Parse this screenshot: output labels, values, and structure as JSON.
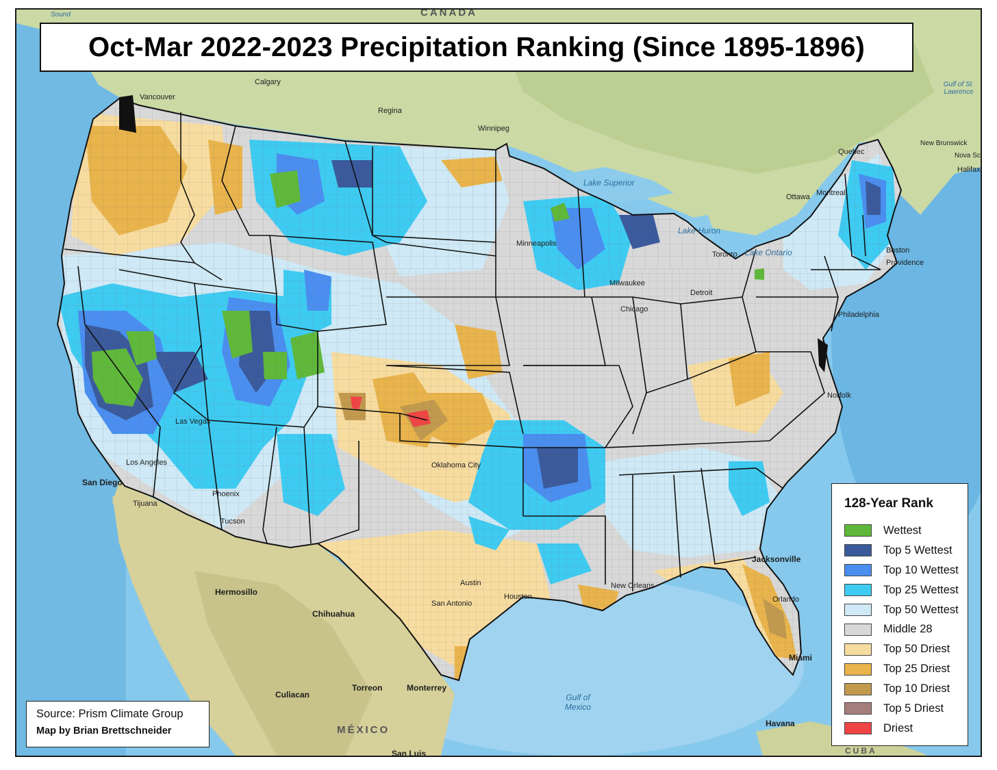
{
  "map": {
    "title": "Oct-Mar 2022-2023 Precipitation Ranking (Since 1895-1896)",
    "source": "Source: Prism Climate Group",
    "credit": "Map by Brian Brettschneider"
  },
  "legend": {
    "title": "128-Year Rank",
    "items": [
      {
        "label": "Wettest",
        "color": "#5fb83a"
      },
      {
        "label": "Top 5 Wettest",
        "color": "#3a5a9c"
      },
      {
        "label": "Top 10 Wettest",
        "color": "#4a8ef0"
      },
      {
        "label": "Top 25 Wettest",
        "color": "#3ecbf2"
      },
      {
        "label": "Top 50 Wettest",
        "color": "#cfe9f6"
      },
      {
        "label": "Middle 28",
        "color": "#d8d8d8"
      },
      {
        "label": "Top 50 Driest",
        "color": "#f7dca0"
      },
      {
        "label": "Top 25 Driest",
        "color": "#e9b44c"
      },
      {
        "label": "Top 10 Driest",
        "color": "#c29a4e"
      },
      {
        "label": "Top 5 Driest",
        "color": "#a67d7d"
      },
      {
        "label": "Driest",
        "color": "#f04545"
      }
    ]
  },
  "basemap_labels": {
    "canada": "CANADA",
    "mexico": "MÉXICO",
    "gulf_of_mexico": "Gulf of Mexico",
    "lake_superior": "Lake Superior",
    "lake_huron": "Lake Huron",
    "lake_ontario": "Lake Ontario",
    "gulf_st_lawrence": "Gulf of St. Lawrence",
    "sound": "Sound",
    "vancouver": "Vancouver",
    "calgary": "Calgary",
    "regina": "Regina",
    "winnipeg": "Winnipeg",
    "quebec": "Quebec",
    "ottawa": "Ottawa",
    "montreal": "Montreal",
    "new_brunswick": "New Brunswick",
    "nova_scotia": "Nova Scotia",
    "halifax": "Halifax",
    "toronto": "Toronto",
    "boston": "Boston",
    "providence": "Providence",
    "philadelphia": "Philadelphia",
    "norfolk": "Norfolk",
    "detroit": "Detroit",
    "chicago": "Chicago",
    "milwaukee": "Milwaukee",
    "minneapolis": "Minneapolis",
    "jacksonville": "Jacksonville",
    "orlando": "Orlando",
    "miami": "Miami",
    "havana": "Havana",
    "cuba": "CUBA",
    "new_orleans": "New Orleans",
    "houston": "Houston",
    "san_antonio": "San Antonio",
    "austin": "Austin",
    "oklahoma_city": "Oklahoma City",
    "phoenix": "Phoenix",
    "tucson": "Tucson",
    "los_angeles": "Los Angeles",
    "las_vegas": "Las Vegas",
    "san_diego": "San Diego",
    "tijuana": "Tijuana",
    "hermosillo": "Hermosillo",
    "chihuahua": "Chihuahua",
    "culiacan": "Culiacan",
    "torreon": "Torreon",
    "monterrey": "Monterrey",
    "san_luis": "San Luis"
  }
}
